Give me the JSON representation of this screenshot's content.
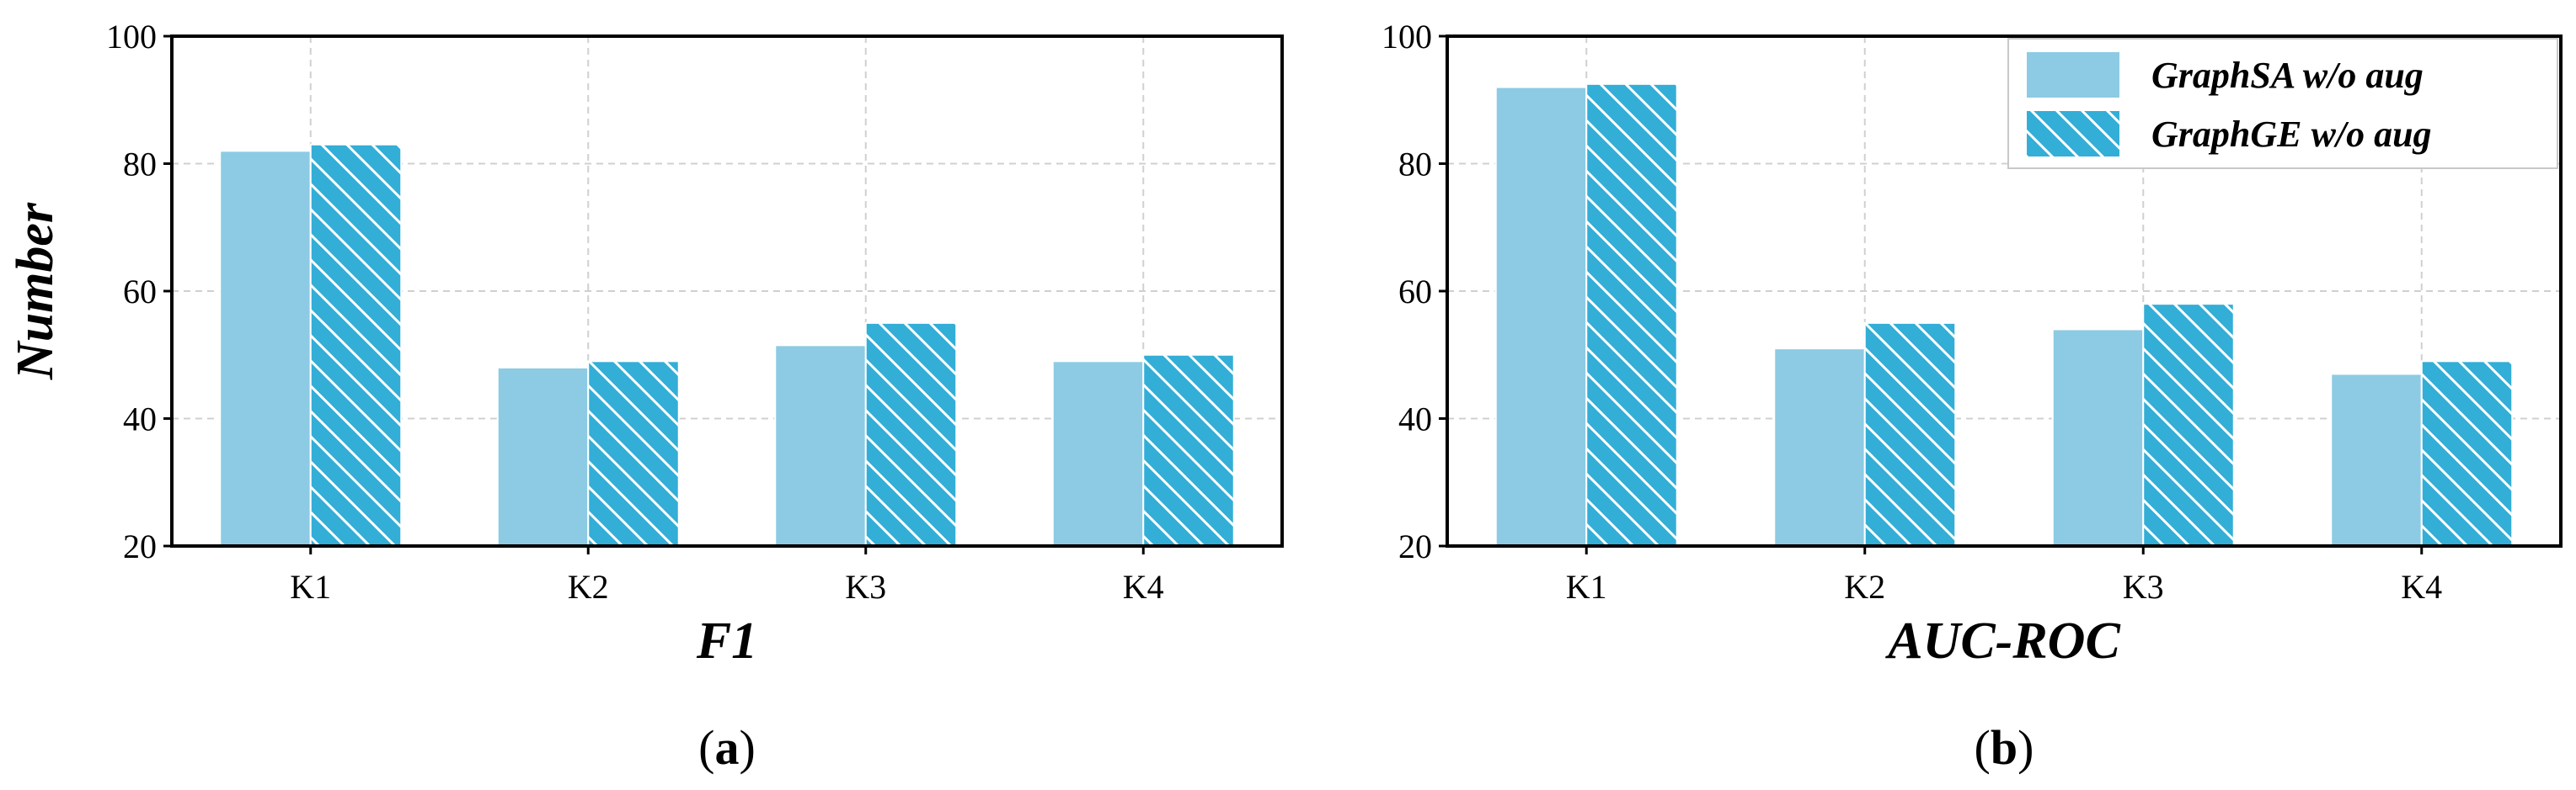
{
  "chart_data": [
    {
      "type": "bar",
      "panel": "a",
      "categories": [
        "K1",
        "K2",
        "K3",
        "K4"
      ],
      "series": [
        {
          "name": "GraphSA w/o aug",
          "values": [
            82,
            48,
            51.5,
            49
          ]
        },
        {
          "name": "GraphGE w/o aug",
          "values": [
            83,
            49,
            55,
            50
          ]
        }
      ],
      "xlabel": "F1",
      "ylabel": "Number",
      "ylim": [
        20,
        100
      ],
      "yticks": [
        20,
        40,
        60,
        80,
        100
      ],
      "grid": true,
      "legend": "none"
    },
    {
      "type": "bar",
      "panel": "b",
      "categories": [
        "K1",
        "K2",
        "K3",
        "K4"
      ],
      "series": [
        {
          "name": "GraphSA w/o aug",
          "values": [
            92,
            51,
            54,
            47
          ]
        },
        {
          "name": "GraphGE w/o aug",
          "values": [
            92.5,
            55,
            58,
            49
          ]
        }
      ],
      "xlabel": "AUC-ROC",
      "ylabel": "",
      "ylim": [
        20,
        100
      ],
      "yticks": [
        20,
        40,
        60,
        80,
        100
      ],
      "grid": true,
      "legend": "top-right"
    }
  ],
  "legend": {
    "items": [
      {
        "label": "GraphSA w/o aug",
        "color": "#8ccbe3",
        "pattern": "solid"
      },
      {
        "label": "GraphGE w/o aug",
        "color": "#33aed7",
        "pattern": "hatch"
      }
    ]
  },
  "panel_labels": [
    {
      "open": "(",
      "letter": "a",
      "close": ")"
    },
    {
      "open": "(",
      "letter": "b",
      "close": ")"
    }
  ],
  "colors": {
    "series_a": "#8ccbe3",
    "series_b": "#33aed7",
    "grid": "#d0d0d0",
    "axis": "#000000"
  }
}
